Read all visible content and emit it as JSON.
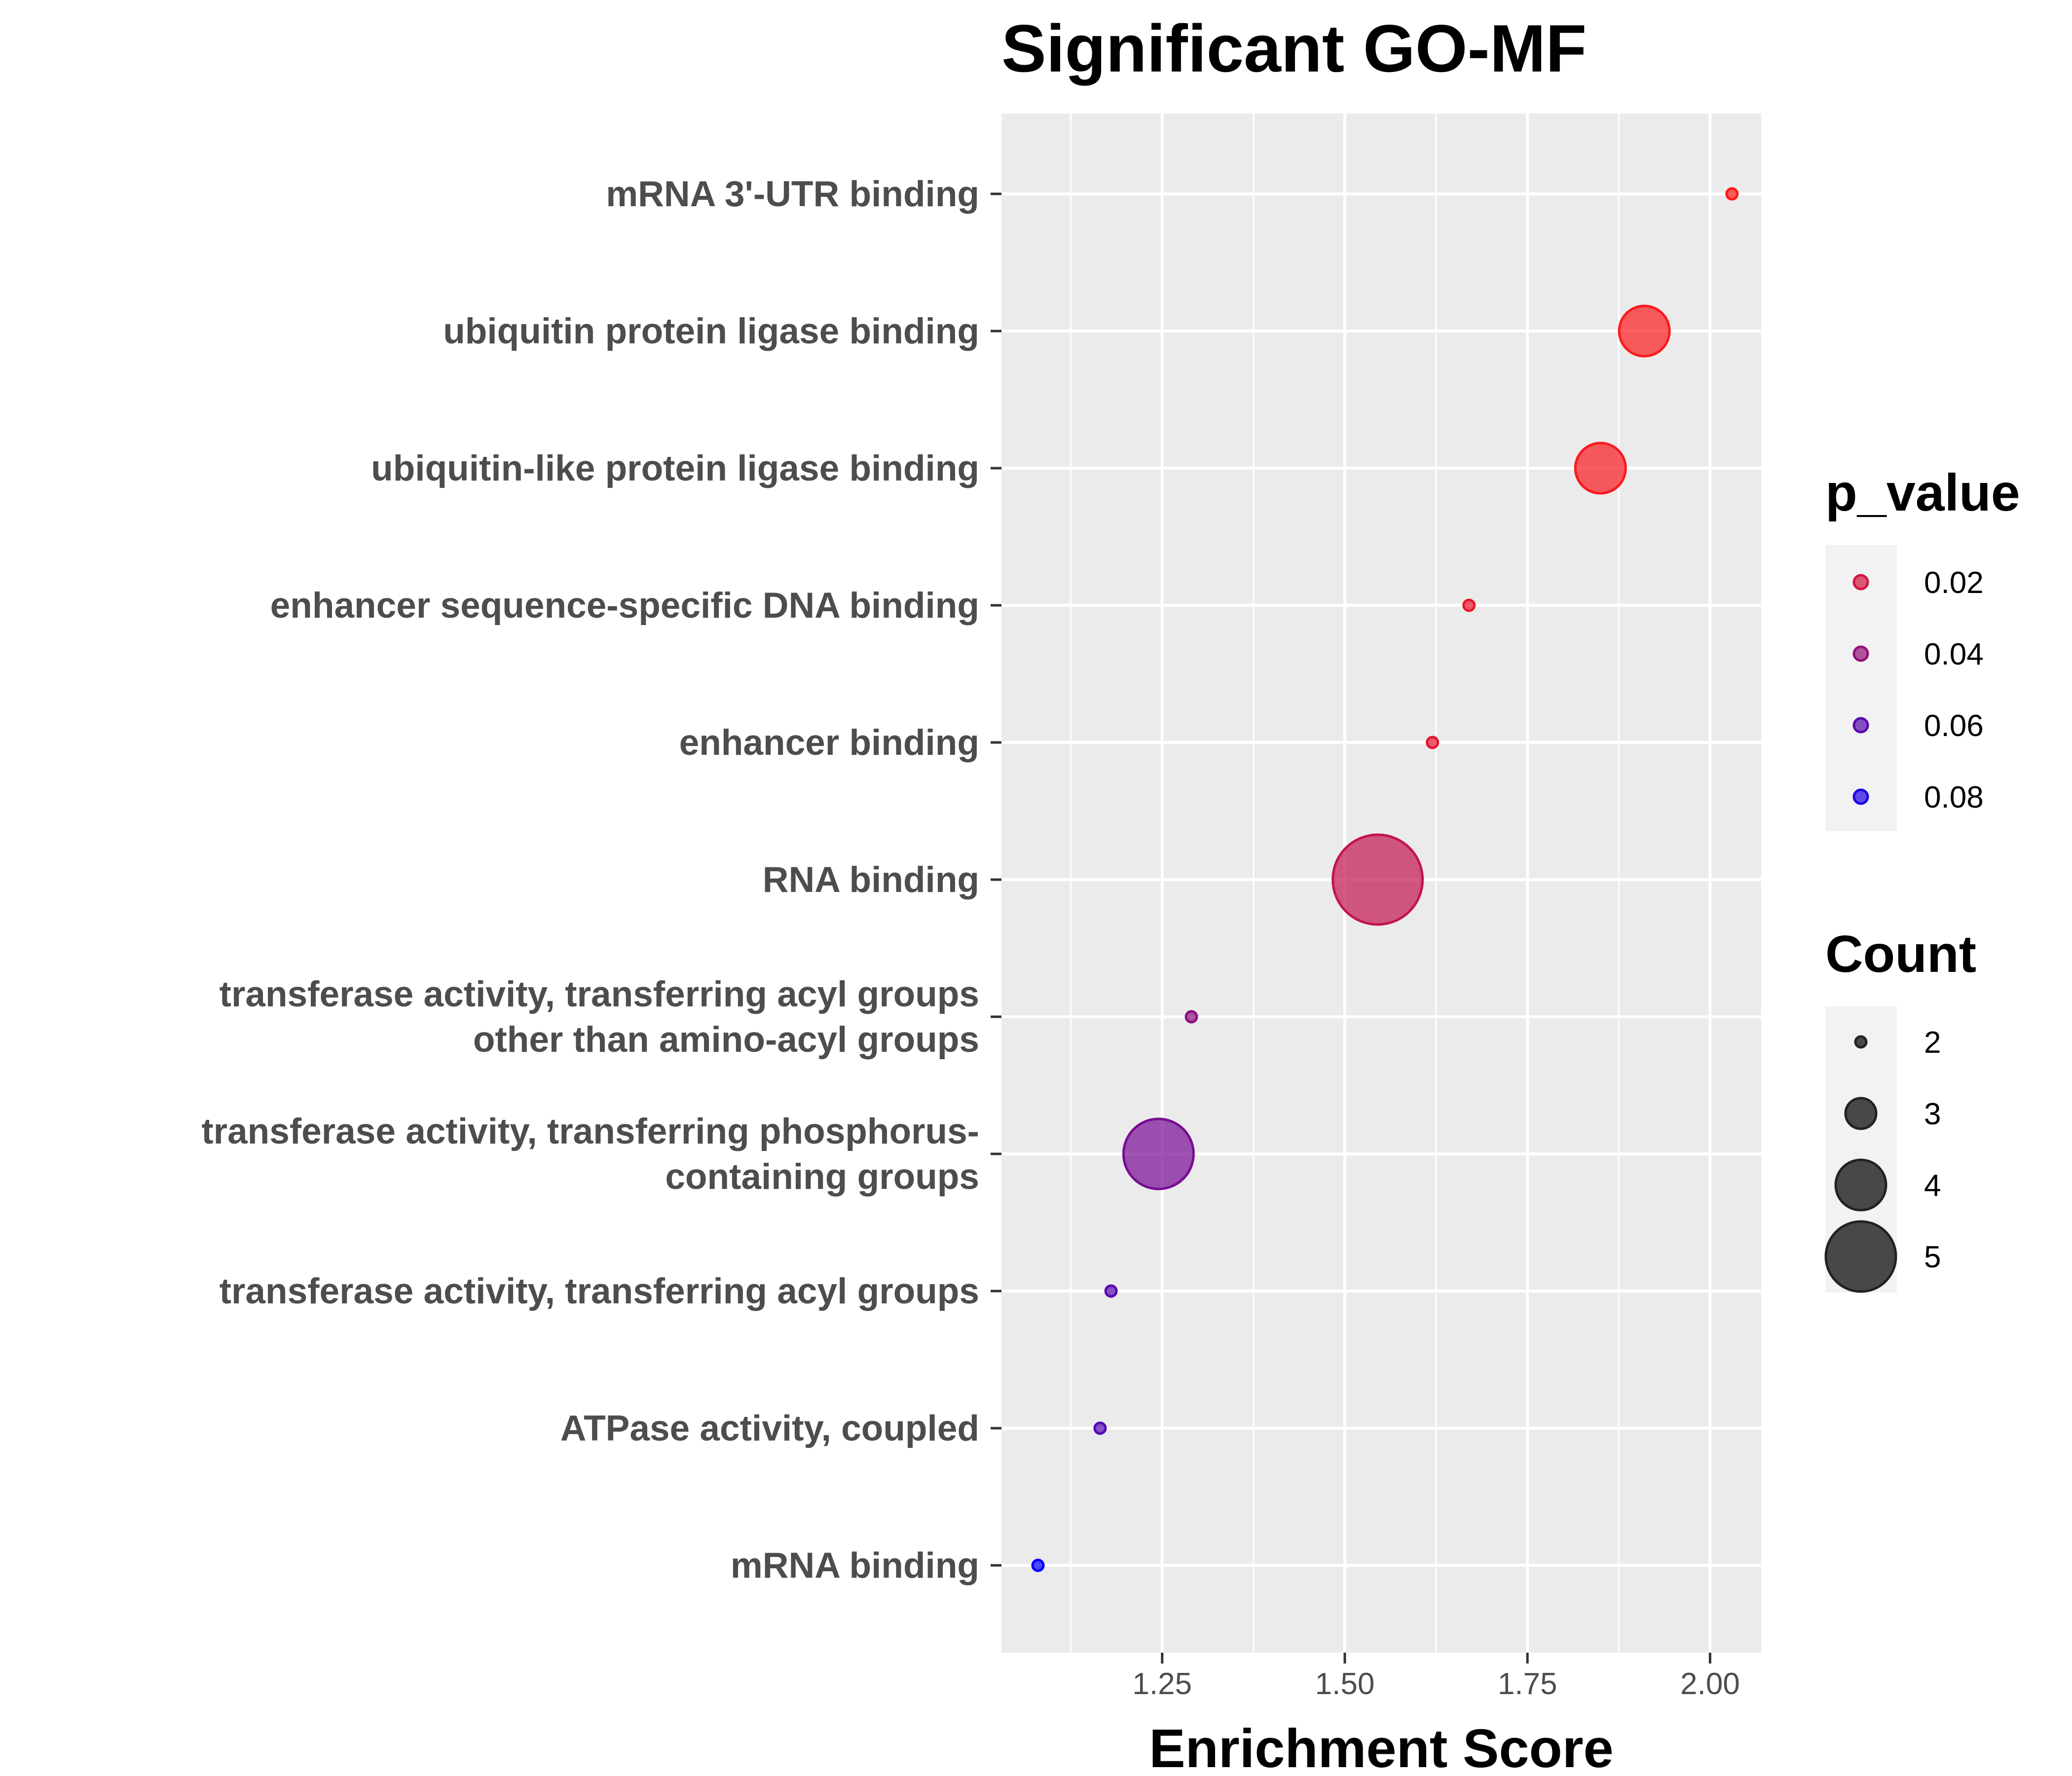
{
  "chart_data": {
    "type": "scatter",
    "title": "Significant GO-MF",
    "xlabel": "Enrichment Score",
    "ylabel": "",
    "xlim": [
      1.03,
      2.07
    ],
    "x_ticks": [
      "1.25",
      "1.50",
      "1.75",
      "2.00"
    ],
    "categories": [
      "mRNA 3'-UTR binding",
      "ubiquitin protein ligase binding",
      "ubiquitin-like protein ligase binding",
      "enhancer sequence-specific DNA binding",
      "enhancer binding",
      "RNA binding",
      "transferase activity, transferring acyl groups other than amino-acyl groups",
      "transferase activity, transferring phosphorus-containing groups",
      "transferase activity, transferring acyl groups",
      "ATPase activity, coupled",
      "mRNA binding"
    ],
    "category_lines": [
      [
        "mRNA 3'-UTR binding"
      ],
      [
        "ubiquitin protein ligase binding"
      ],
      [
        "ubiquitin-like protein ligase binding"
      ],
      [
        "enhancer sequence-specific DNA binding"
      ],
      [
        "enhancer binding"
      ],
      [
        "RNA binding"
      ],
      [
        "transferase activity, transferring acyl groups",
        "other than amino-acyl groups"
      ],
      [
        "transferase activity, transferring phosphorus-",
        "containing groups"
      ],
      [
        "transferase activity, transferring acyl groups"
      ],
      [
        "ATPase activity, coupled"
      ],
      [
        "mRNA binding"
      ]
    ],
    "points": [
      {
        "term": "mRNA 3'-UTR binding",
        "x": 2.03,
        "p_value": 0.005,
        "count": 2
      },
      {
        "term": "ubiquitin protein ligase binding",
        "x": 1.91,
        "p_value": 0.006,
        "count": 4
      },
      {
        "term": "ubiquitin-like protein ligase binding",
        "x": 1.85,
        "p_value": 0.007,
        "count": 4
      },
      {
        "term": "enhancer sequence-specific DNA binding",
        "x": 1.67,
        "p_value": 0.012,
        "count": 2
      },
      {
        "term": "enhancer binding",
        "x": 1.62,
        "p_value": 0.014,
        "count": 2
      },
      {
        "term": "RNA binding",
        "x": 1.545,
        "p_value": 0.025,
        "count": 6
      },
      {
        "term": "transferase activity, transferring acyl groups other than amino-acyl groups",
        "x": 1.29,
        "p_value": 0.043,
        "count": 2
      },
      {
        "term": "transferase activity, transferring phosphorus-containing groups",
        "x": 1.245,
        "p_value": 0.05,
        "count": 5
      },
      {
        "term": "transferase activity, transferring acyl groups",
        "x": 1.18,
        "p_value": 0.06,
        "count": 2
      },
      {
        "term": "ATPase activity, coupled",
        "x": 1.165,
        "p_value": 0.062,
        "count": 2
      },
      {
        "term": "mRNA binding",
        "x": 1.08,
        "p_value": 0.09,
        "count": 2
      }
    ],
    "legend": {
      "placement": "right",
      "color": {
        "title": "p_value",
        "labels": [
          "0.02",
          "0.04",
          "0.06",
          "0.08"
        ],
        "values": [
          0.02,
          0.04,
          0.06,
          0.08
        ]
      },
      "size": {
        "title": "Count",
        "labels": [
          "2",
          "3",
          "4",
          "5"
        ],
        "values": [
          2,
          3,
          4,
          5
        ]
      }
    },
    "colors": {
      "low": "#ff1a1a",
      "high": "#0000ff",
      "panel": "#ebebeb",
      "grid": "#ffffff"
    },
    "grid": true
  }
}
